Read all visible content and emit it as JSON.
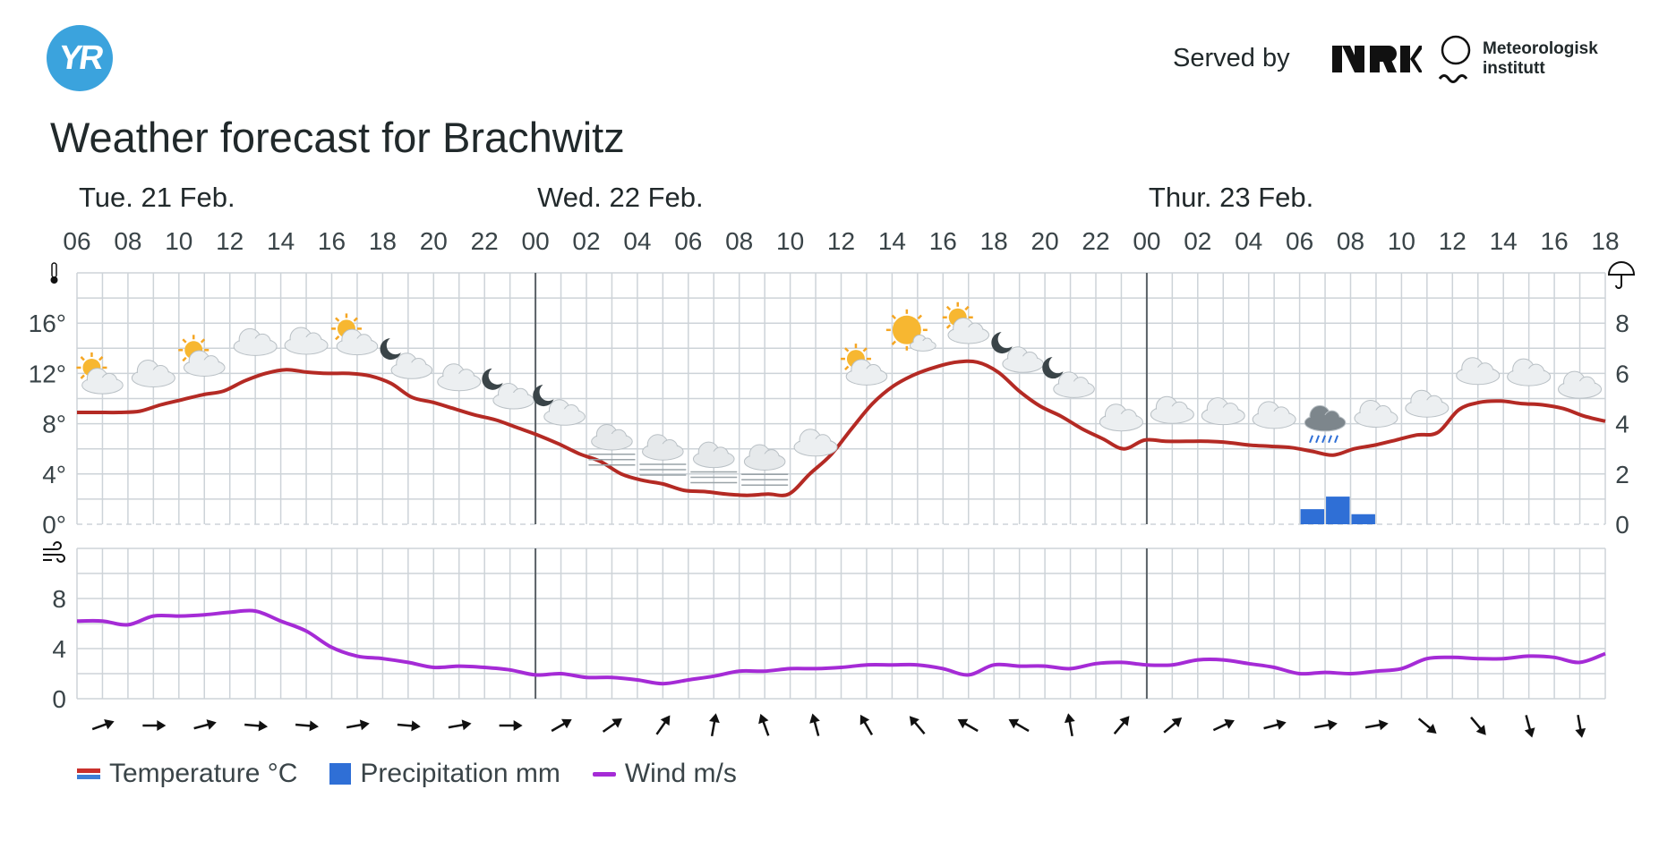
{
  "header": {
    "logo_text": "YR",
    "served_by": "Served by",
    "nrk_logo": "NRK",
    "met_line1": "Meteorologisk",
    "met_line2": "institutt"
  },
  "title": "Weather forecast for Brachwitz",
  "legend": {
    "temperature": "Temperature °C",
    "precipitation": "Precipitation mm",
    "wind": "Wind m/s"
  },
  "colors": {
    "temperature": "#b42a24",
    "precipitation": "#2f6fd6",
    "wind": "#a52bd6",
    "grid": "#cdd3d8",
    "day_divider": "#5a6166"
  },
  "chart_data": [
    {
      "type": "line",
      "name": "temperature-precipitation",
      "days": [
        "Tue. 21 Feb.",
        "Wed. 22 Feb.",
        "Thur. 23 Feb."
      ],
      "hour_ticks": [
        "06",
        "08",
        "10",
        "12",
        "14",
        "16",
        "18",
        "20",
        "22",
        "00",
        "02",
        "04",
        "06",
        "08",
        "10",
        "12",
        "14",
        "16",
        "18",
        "20",
        "22",
        "00",
        "02",
        "04",
        "06",
        "08",
        "10",
        "12",
        "14",
        "16",
        "18"
      ],
      "y_left": {
        "label_ticks": [
          "0°",
          "4°",
          "8°",
          "12°",
          "16°"
        ],
        "range": [
          0,
          20
        ]
      },
      "y_right": {
        "label_ticks": [
          "0",
          "2",
          "4",
          "6",
          "8"
        ],
        "range": [
          0,
          10
        ]
      },
      "temperature": [
        8.9,
        8.9,
        8.9,
        9.0,
        9.5,
        9.9,
        10.3,
        10.6,
        11.4,
        12.0,
        12.3,
        12.1,
        12.0,
        12.0,
        11.8,
        11.2,
        10.1,
        9.7,
        9.2,
        8.7,
        8.3,
        7.7,
        7.1,
        6.4,
        5.6,
        5.0,
        4.0,
        3.5,
        3.2,
        2.7,
        2.6,
        2.4,
        2.3,
        2.4,
        2.4,
        4.0,
        5.5,
        7.6,
        9.6,
        11.0,
        11.9,
        12.5,
        12.9,
        12.9,
        12.1,
        10.6,
        9.4,
        8.6,
        7.6,
        6.8,
        6.0,
        6.7,
        6.6,
        6.6,
        6.6,
        6.5,
        6.3,
        6.2,
        6.1,
        5.8,
        5.5,
        6.0,
        6.3,
        6.7,
        7.1,
        7.3,
        9.1,
        9.7,
        9.8,
        9.6,
        9.5,
        9.2,
        8.6,
        8.2
      ],
      "precipitation": [
        {
          "hour_index": 48,
          "mm": 0.6
        },
        {
          "hour_index": 49,
          "mm": 1.1
        },
        {
          "hour_index": 50,
          "mm": 0.4
        }
      ],
      "symbols": [
        "partly-cloudy-day",
        "cloudy",
        "partly-cloudy-day",
        "cloudy",
        "cloudy",
        "partly-cloudy-day",
        "partly-cloudy-night",
        "cloudy",
        "partly-cloudy-night",
        "partly-cloudy-night",
        "fog",
        "fog",
        "fog",
        "fog",
        "cloudy",
        "partly-cloudy-day",
        "clear-sky-day",
        "partly-cloudy-day",
        "partly-cloudy-night",
        "partly-cloudy-night",
        "cloudy",
        "cloudy",
        "cloudy",
        "cloudy",
        "rain",
        "cloudy",
        "cloudy",
        "cloudy",
        "cloudy",
        "cloudy"
      ]
    },
    {
      "type": "line",
      "name": "wind",
      "y": {
        "label_ticks": [
          "0",
          "4",
          "8"
        ],
        "range": [
          0,
          12
        ]
      },
      "wind_speed": [
        6.2,
        6.2,
        5.9,
        6.6,
        6.6,
        6.7,
        6.9,
        7.0,
        6.2,
        5.4,
        4.1,
        3.4,
        3.2,
        2.9,
        2.5,
        2.6,
        2.5,
        2.3,
        1.9,
        2.0,
        1.7,
        1.7,
        1.5,
        1.2,
        1.5,
        1.8,
        2.2,
        2.2,
        2.4,
        2.4,
        2.5,
        2.7,
        2.7,
        2.7,
        2.4,
        1.9,
        2.7,
        2.6,
        2.6,
        2.4,
        2.8,
        2.9,
        2.7,
        2.7,
        3.1,
        3.1,
        2.8,
        2.5,
        2.0,
        2.1,
        2.0,
        2.2,
        2.4,
        3.2,
        3.3,
        3.2,
        3.2,
        3.4,
        3.3,
        2.9,
        3.6
      ],
      "wind_direction_deg": [
        70,
        90,
        75,
        95,
        95,
        80,
        95,
        80,
        90,
        60,
        55,
        35,
        10,
        340,
        345,
        330,
        320,
        300,
        300,
        350,
        40,
        50,
        65,
        75,
        80,
        80,
        130,
        140,
        165,
        170
      ]
    }
  ]
}
